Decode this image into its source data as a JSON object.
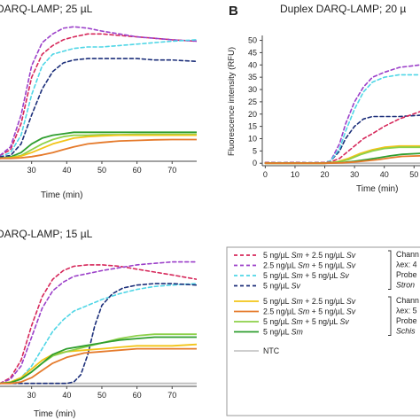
{
  "panels": [
    {
      "id": "A",
      "letter": "",
      "title": "DARQ-LAMP; 25 µL",
      "xlabel": "Time (min)",
      "ylabel": "",
      "xticks": [
        30,
        40,
        50,
        60,
        70
      ],
      "yticks": [],
      "xlim": [
        21,
        77
      ],
      "ylim": [
        -1,
        48
      ]
    },
    {
      "id": "B",
      "letter": "B",
      "title": "Duplex DARQ-LAMP; 20 µ",
      "xlabel": "Time (min)",
      "ylabel": "Fluorescence intensity (RFU)",
      "xticks": [
        0,
        10,
        20,
        30,
        40,
        50
      ],
      "yticks": [
        0,
        5,
        10,
        15,
        20,
        25,
        30,
        35,
        40,
        45,
        50
      ],
      "xlim": [
        -1,
        52
      ],
      "ylim": [
        -1,
        52
      ]
    },
    {
      "id": "C",
      "letter": "",
      "title": "DARQ-LAMP; 15 µL",
      "xlabel": "Time (min)",
      "ylabel": "",
      "xticks": [
        30,
        40,
        50,
        60,
        70
      ],
      "yticks": [],
      "xlim": [
        21,
        77
      ],
      "ylim": [
        -1,
        48
      ]
    }
  ],
  "legend": {
    "groups": [
      {
        "items": [
          {
            "parts": [
              "5 ng/µL ",
              "Sm",
              " + 2.5 ng/µL ",
              "Sv"
            ],
            "color": "#d6275a",
            "dash": true
          },
          {
            "parts": [
              "2.5 ng/µL ",
              "Sm",
              " + 5 ng/µL ",
              "Sv"
            ],
            "color": "#9b3fc9",
            "dash": true
          },
          {
            "parts": [
              "5 ng/µL ",
              "Sm",
              " + 5 ng/µL ",
              "Sv"
            ],
            "color": "#4fd6e6",
            "dash": true
          },
          {
            "parts": [
              "5 ng/µL ",
              "Sv"
            ],
            "color": "#1c2f7a",
            "dash": true
          }
        ],
        "side": [
          "Chann",
          "λex: 4",
          "Probe",
          "Stron"
        ]
      },
      {
        "items": [
          {
            "parts": [
              "5 ng/µL ",
              "Sm",
              " + 2.5 ng/µL ",
              "Sv"
            ],
            "color": "#f2c418",
            "dash": false
          },
          {
            "parts": [
              "2.5 ng/µL ",
              "Sm",
              " + 5 ng/µL ",
              "Sv"
            ],
            "color": "#e57a2b",
            "dash": false
          },
          {
            "parts": [
              "5 ng/µL ",
              "Sm",
              " + 5 ng/µL ",
              "Sv"
            ],
            "color": "#8dd14a",
            "dash": false
          },
          {
            "parts": [
              "5 ng/µL ",
              "Sm"
            ],
            "color": "#2f9e2f",
            "dash": false
          }
        ],
        "side": [
          "Chann",
          "λex: 5",
          "Probe",
          "Schis"
        ]
      }
    ],
    "ntc": {
      "label": "NTC",
      "color": "#bdbdbd"
    }
  },
  "chart_data": [
    {
      "panel": "A",
      "type": "line",
      "xlabel": "Time (min)",
      "xlim": [
        21,
        77
      ],
      "series": [
        {
          "color": "#d6275a",
          "dash": true,
          "x": [
            21,
            24,
            27,
            30,
            33,
            36,
            39,
            42,
            46,
            50,
            55,
            60,
            65,
            70,
            77
          ],
          "y": [
            1,
            3,
            12,
            28,
            36,
            39,
            41,
            42,
            43,
            43,
            42.5,
            42,
            41.5,
            41,
            40.5
          ]
        },
        {
          "color": "#9b3fc9",
          "dash": true,
          "x": [
            21,
            24,
            27,
            30,
            33,
            36,
            39,
            42,
            46,
            50,
            55,
            60,
            65,
            70,
            77
          ],
          "y": [
            1,
            4,
            15,
            32,
            40,
            43,
            45,
            45.5,
            45,
            44,
            43,
            42,
            41.5,
            41,
            40.5
          ]
        },
        {
          "color": "#4fd6e6",
          "dash": true,
          "x": [
            21,
            24,
            27,
            30,
            33,
            36,
            39,
            42,
            46,
            50,
            55,
            60,
            65,
            70,
            77
          ],
          "y": [
            0.5,
            2,
            8,
            22,
            32,
            36,
            37,
            38,
            38.5,
            38.5,
            39,
            39.5,
            40,
            40.5,
            41
          ]
        },
        {
          "color": "#1c2f7a",
          "dash": true,
          "x": [
            21,
            24,
            27,
            30,
            33,
            36,
            39,
            42,
            46,
            50,
            55,
            60,
            65,
            70,
            77
          ],
          "y": [
            0.5,
            1,
            5,
            15,
            24,
            30,
            33,
            34,
            34.5,
            34.5,
            34.5,
            34.5,
            34,
            34,
            33.5
          ]
        },
        {
          "color": "#2f9e2f",
          "dash": false,
          "x": [
            21,
            24,
            27,
            30,
            33,
            36,
            39,
            42,
            46,
            50,
            55,
            60,
            65,
            70,
            77
          ],
          "y": [
            0,
            0.5,
            2,
            5,
            7,
            8,
            8.5,
            9,
            9,
            9,
            9,
            9,
            9,
            9,
            9
          ]
        },
        {
          "color": "#8dd14a",
          "dash": false,
          "x": [
            21,
            24,
            27,
            30,
            33,
            36,
            39,
            42,
            46,
            50,
            55,
            60,
            65,
            70,
            77
          ],
          "y": [
            0,
            0.3,
            1,
            3,
            5,
            6.5,
            7.5,
            8,
            8,
            8.2,
            8.2,
            8.3,
            8.3,
            8.3,
            8.3
          ]
        },
        {
          "color": "#f2c418",
          "dash": false,
          "x": [
            21,
            24,
            27,
            30,
            33,
            36,
            39,
            42,
            46,
            50,
            55,
            60,
            65,
            70,
            77
          ],
          "y": [
            0,
            0.2,
            0.8,
            2,
            3.5,
            5,
            6,
            7,
            7.5,
            7.8,
            8,
            8,
            8,
            8,
            8
          ]
        },
        {
          "color": "#e57a2b",
          "dash": false,
          "x": [
            21,
            24,
            27,
            30,
            33,
            36,
            39,
            42,
            46,
            50,
            55,
            60,
            65,
            70,
            77
          ],
          "y": [
            0,
            0,
            0.2,
            0.6,
            1.2,
            2,
            3,
            4,
            5,
            5.5,
            6,
            6.2,
            6.4,
            6.5,
            6.5
          ]
        }
      ]
    },
    {
      "panel": "B",
      "type": "line",
      "xlabel": "Time (min)",
      "ylabel": "Fluorescence intensity (RFU)",
      "xlim": [
        -1,
        52
      ],
      "ylim": [
        -1,
        52
      ],
      "series": [
        {
          "color": "#bdbdbd",
          "dash": false,
          "x": [
            0,
            10,
            20,
            30,
            40,
            52
          ],
          "y": [
            0,
            0,
            0,
            0,
            0,
            0
          ]
        },
        {
          "color": "#1c2f7a",
          "dash": true,
          "x": [
            0,
            5,
            10,
            15,
            20,
            22,
            25,
            27,
            30,
            33,
            36,
            40,
            45,
            52
          ],
          "y": [
            0.3,
            0.2,
            0.3,
            0.2,
            0.3,
            1,
            5,
            10,
            15,
            18,
            19,
            19,
            19,
            19.5
          ]
        },
        {
          "color": "#9b3fc9",
          "dash": true,
          "x": [
            0,
            5,
            10,
            15,
            20,
            22,
            25,
            27,
            30,
            33,
            36,
            40,
            45,
            52
          ],
          "y": [
            0.3,
            0.2,
            0.3,
            0.2,
            0.3,
            1,
            8,
            16,
            25,
            31,
            35,
            37,
            39,
            40
          ]
        },
        {
          "color": "#4fd6e6",
          "dash": true,
          "x": [
            0,
            5,
            10,
            15,
            20,
            22,
            25,
            27,
            30,
            33,
            36,
            40,
            45,
            52
          ],
          "y": [
            0.3,
            0.2,
            0.3,
            0.2,
            0.3,
            1,
            6,
            13,
            22,
            29,
            33,
            35,
            36,
            36
          ]
        },
        {
          "color": "#d6275a",
          "dash": true,
          "x": [
            0,
            5,
            10,
            15,
            20,
            22,
            25,
            27,
            30,
            33,
            36,
            40,
            45,
            52
          ],
          "y": [
            0.3,
            0.2,
            0.3,
            0.2,
            0.3,
            0.5,
            2,
            4,
            7,
            10,
            12,
            15,
            18,
            21
          ]
        },
        {
          "color": "#f2c418",
          "dash": false,
          "x": [
            0,
            20,
            24,
            28,
            32,
            36,
            40,
            45,
            52
          ],
          "y": [
            0,
            0,
            0.5,
            2,
            4,
            5.5,
            6.5,
            7,
            7
          ]
        },
        {
          "color": "#8dd14a",
          "dash": false,
          "x": [
            0,
            20,
            24,
            28,
            32,
            36,
            40,
            45,
            52
          ],
          "y": [
            0,
            0,
            0.4,
            1.5,
            3.5,
            5,
            6,
            6.5,
            6.5
          ]
        },
        {
          "color": "#2f9e2f",
          "dash": false,
          "x": [
            0,
            20,
            26,
            30,
            34,
            38,
            42,
            46,
            52
          ],
          "y": [
            0,
            0,
            0.3,
            0.8,
            1.5,
            2.2,
            3,
            3.6,
            4
          ]
        },
        {
          "color": "#e57a2b",
          "dash": false,
          "x": [
            0,
            20,
            26,
            30,
            34,
            38,
            42,
            46,
            52
          ],
          "y": [
            0,
            0,
            0.2,
            0.5,
            1,
            1.5,
            2.2,
            2.8,
            3
          ]
        }
      ]
    },
    {
      "panel": "C",
      "type": "line",
      "xlabel": "Time (min)",
      "xlim": [
        21,
        77
      ],
      "series": [
        {
          "color": "#bdbdbd",
          "dash": false,
          "x": [
            21,
            40,
            60,
            77
          ],
          "y": [
            0,
            0,
            0,
            0
          ]
        },
        {
          "color": "#d6275a",
          "dash": true,
          "x": [
            21,
            24,
            27,
            30,
            33,
            36,
            39,
            42,
            46,
            50,
            55,
            60,
            65,
            70,
            77
          ],
          "y": [
            0,
            2,
            8,
            20,
            30,
            36,
            39,
            40.5,
            41,
            41,
            40.5,
            39.5,
            38.5,
            37.5,
            36
          ]
        },
        {
          "color": "#9b3fc9",
          "dash": true,
          "x": [
            21,
            24,
            27,
            30,
            33,
            36,
            39,
            42,
            46,
            50,
            55,
            60,
            65,
            70,
            77
          ],
          "y": [
            0,
            1.5,
            6,
            16,
            26,
            32,
            35,
            37,
            38,
            39,
            40,
            41,
            41.5,
            42,
            42
          ]
        },
        {
          "color": "#4fd6e6",
          "dash": true,
          "x": [
            21,
            24,
            27,
            30,
            33,
            36,
            39,
            42,
            46,
            50,
            55,
            60,
            65,
            70,
            77
          ],
          "y": [
            0,
            0.5,
            2,
            6,
            12,
            18,
            22,
            25,
            27,
            29,
            31,
            32.5,
            33.5,
            34,
            34.5
          ]
        },
        {
          "color": "#1c2f7a",
          "dash": true,
          "x": [
            21,
            30,
            40,
            42,
            44,
            46,
            48,
            50,
            53,
            56,
            60,
            65,
            70,
            77
          ],
          "y": [
            0,
            0,
            0,
            0.5,
            3,
            10,
            20,
            27,
            31,
            33,
            34,
            34.5,
            34.5,
            34
          ]
        },
        {
          "color": "#f2c418",
          "dash": false,
          "x": [
            21,
            24,
            27,
            30,
            33,
            36,
            40,
            45,
            50,
            55,
            60,
            65,
            70,
            77
          ],
          "y": [
            0,
            0.5,
            2,
            5,
            8,
            10,
            11,
            11.5,
            12,
            12.5,
            13,
            13,
            13,
            13.5
          ]
        },
        {
          "color": "#8dd14a",
          "dash": false,
          "x": [
            21,
            24,
            27,
            30,
            33,
            36,
            40,
            45,
            50,
            55,
            60,
            65,
            70,
            77
          ],
          "y": [
            0,
            0.3,
            1.5,
            4,
            7,
            9.5,
            11,
            12.5,
            14,
            15.5,
            16.5,
            17,
            17,
            17
          ]
        },
        {
          "color": "#2f9e2f",
          "dash": false,
          "x": [
            21,
            24,
            27,
            30,
            33,
            36,
            40,
            45,
            50,
            55,
            60,
            65,
            70,
            77
          ],
          "y": [
            0,
            0.3,
            1.5,
            4,
            7,
            10,
            12,
            13,
            14,
            15,
            15.5,
            16,
            16,
            16
          ]
        },
        {
          "color": "#e57a2b",
          "dash": false,
          "x": [
            21,
            24,
            27,
            30,
            33,
            36,
            40,
            45,
            50,
            55,
            60,
            65,
            70,
            77
          ],
          "y": [
            0,
            0,
            0.5,
            2,
            4.5,
            7,
            9,
            10.5,
            11,
            11.5,
            12,
            12,
            12,
            12
          ]
        }
      ]
    }
  ]
}
